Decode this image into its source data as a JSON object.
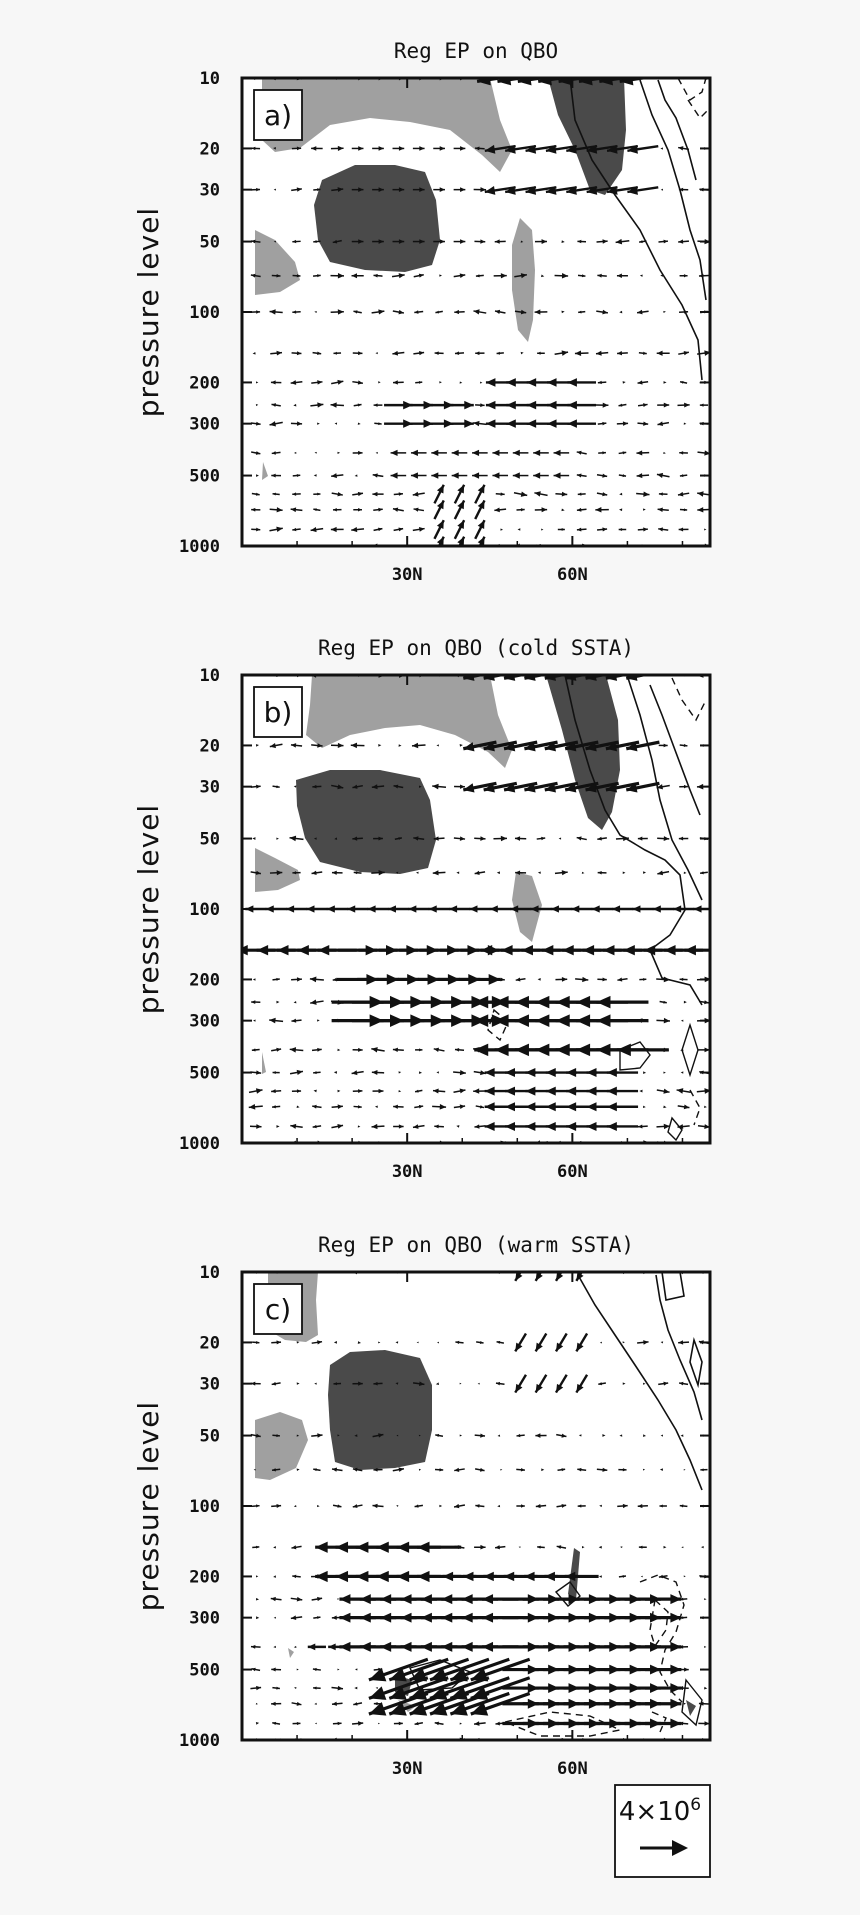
{
  "figure": {
    "reference_vector": {
      "label_base": "4×10",
      "label_exp": "6"
    }
  },
  "chart_data": [
    {
      "type": "quiver",
      "panel_label": "a)",
      "title": "Reg EP on QBO",
      "ylabel": "pressure level",
      "xlabel": "",
      "x_ticks": [
        "30N",
        "60N"
      ],
      "y_ticks": [
        "10",
        "20",
        "30",
        "50",
        "100",
        "200",
        "300",
        "500",
        "1000"
      ],
      "x_range": [
        0,
        85
      ],
      "y_range": [
        1000,
        10
      ],
      "y_scale": "log",
      "shading_colors": {
        "positive": "#a0a0a0",
        "negative": "#4a4a4a"
      }
    },
    {
      "type": "quiver",
      "panel_label": "b)",
      "title": "Reg EP on QBO (cold SSTA)",
      "ylabel": "pressure level",
      "xlabel": "",
      "x_ticks": [
        "30N",
        "60N"
      ],
      "y_ticks": [
        "10",
        "20",
        "30",
        "50",
        "100",
        "200",
        "300",
        "500",
        "1000"
      ],
      "x_range": [
        0,
        85
      ],
      "y_range": [
        1000,
        10
      ],
      "y_scale": "log",
      "shading_colors": {
        "positive": "#a0a0a0",
        "negative": "#4a4a4a"
      }
    },
    {
      "type": "quiver",
      "panel_label": "c)",
      "title": "Reg EP on QBO (warm SSTA)",
      "ylabel": "pressure level",
      "xlabel": "",
      "x_ticks": [
        "30N",
        "60N"
      ],
      "y_ticks": [
        "10",
        "20",
        "30",
        "50",
        "100",
        "200",
        "300",
        "500",
        "1000"
      ],
      "x_range": [
        0,
        85
      ],
      "y_range": [
        1000,
        10
      ],
      "y_scale": "log",
      "shading_colors": {
        "positive": "#a0a0a0",
        "negative": "#4a4a4a"
      }
    }
  ]
}
